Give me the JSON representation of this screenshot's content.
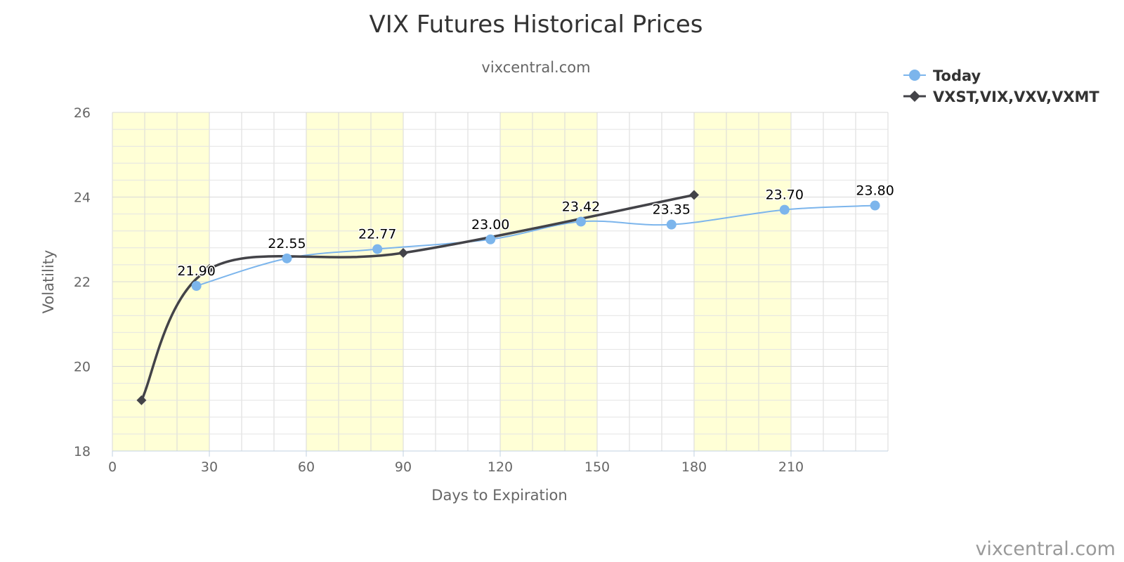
{
  "chart_data": {
    "type": "line",
    "title": "VIX Futures Historical Prices",
    "subtitle": "vixcentral.com",
    "xlabel": "Days to Expiration",
    "ylabel": "Volatility",
    "xlim": [
      0,
      240
    ],
    "ylim": [
      18,
      26
    ],
    "xticks": [
      0,
      30,
      60,
      90,
      120,
      150,
      180,
      210
    ],
    "yticks": [
      18,
      20,
      22,
      24,
      26
    ],
    "grid": true,
    "legend_position": "top-right",
    "shaded_bands": [
      [
        0,
        30
      ],
      [
        60,
        90
      ],
      [
        120,
        150
      ],
      [
        180,
        210
      ]
    ],
    "series": [
      {
        "name": "Today",
        "marker": "circle",
        "color": "#7cb5ec",
        "x": [
          26,
          54,
          82,
          117,
          145,
          173,
          208,
          236
        ],
        "y": [
          21.9,
          22.55,
          22.77,
          23.0,
          23.42,
          23.35,
          23.7,
          23.8
        ],
        "labels": [
          "21.90",
          "22.55",
          "22.77",
          "23.00",
          "23.42",
          "23.35",
          "23.70",
          "23.80"
        ]
      },
      {
        "name": "VXST,VIX,VXV,VXMT",
        "marker": "diamond",
        "color": "#434348",
        "x": [
          9,
          30,
          90,
          180
        ],
        "y": [
          19.2,
          22.3,
          22.68,
          24.05
        ]
      }
    ]
  },
  "credits": "vixcentral.com",
  "colors": {
    "band_fill": "#ffffd6",
    "grid_major": "#d8d8d8",
    "grid_minor": "#e4e4e4"
  }
}
